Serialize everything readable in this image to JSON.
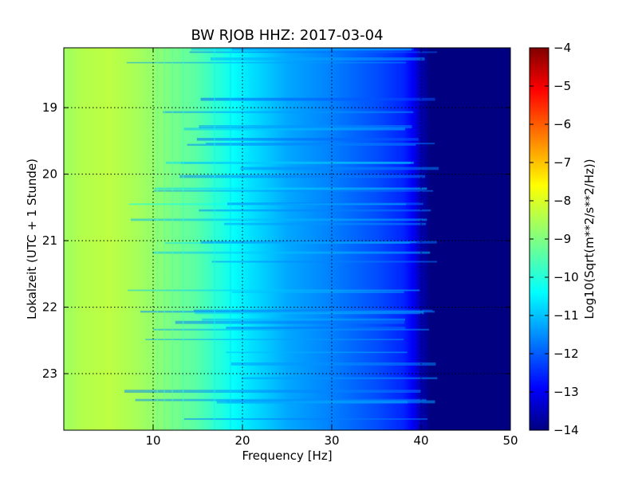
{
  "chart_data": {
    "type": "heatmap",
    "title": "BW RJOB HHZ: 2017-03-04",
    "xlabel": "Frequency [Hz]",
    "ylabel": "Lokalzeit (UTC + 1 Stunde)",
    "xlim": [
      0,
      50
    ],
    "ylim": [
      18.1,
      23.85
    ],
    "y_inverted": true,
    "x_ticks": [
      10,
      20,
      30,
      40,
      50
    ],
    "x_tick_labels": [
      "10",
      "20",
      "30",
      "40",
      "50"
    ],
    "y_ticks": [
      19,
      20,
      21,
      22,
      23
    ],
    "y_tick_labels": [
      "19",
      "20",
      "21",
      "22",
      "23"
    ],
    "grid": true,
    "colormap": "jet",
    "colorbar": {
      "label": "Log10(Sqrt(m**2/s**2/Hz))",
      "range": [
        -14,
        -4
      ],
      "ticks": [
        -4,
        -5,
        -6,
        -7,
        -8,
        -9,
        -10,
        -11,
        -12,
        -13,
        -14
      ],
      "tick_labels": [
        "−4",
        "−5",
        "−6",
        "−7",
        "−8",
        "−9",
        "−10",
        "−11",
        "−12",
        "−13",
        "−14"
      ]
    },
    "spectral_profile": {
      "frequency": [
        0,
        2,
        5,
        8,
        10,
        15,
        20,
        25,
        30,
        35,
        38,
        39.5,
        40.5,
        50
      ],
      "level": [
        -8.7,
        -8.5,
        -8.4,
        -8.6,
        -8.8,
        -9.4,
        -10.4,
        -11.1,
        -11.5,
        -12.0,
        -12.4,
        -13.0,
        -14.0,
        -14.0
      ]
    }
  }
}
